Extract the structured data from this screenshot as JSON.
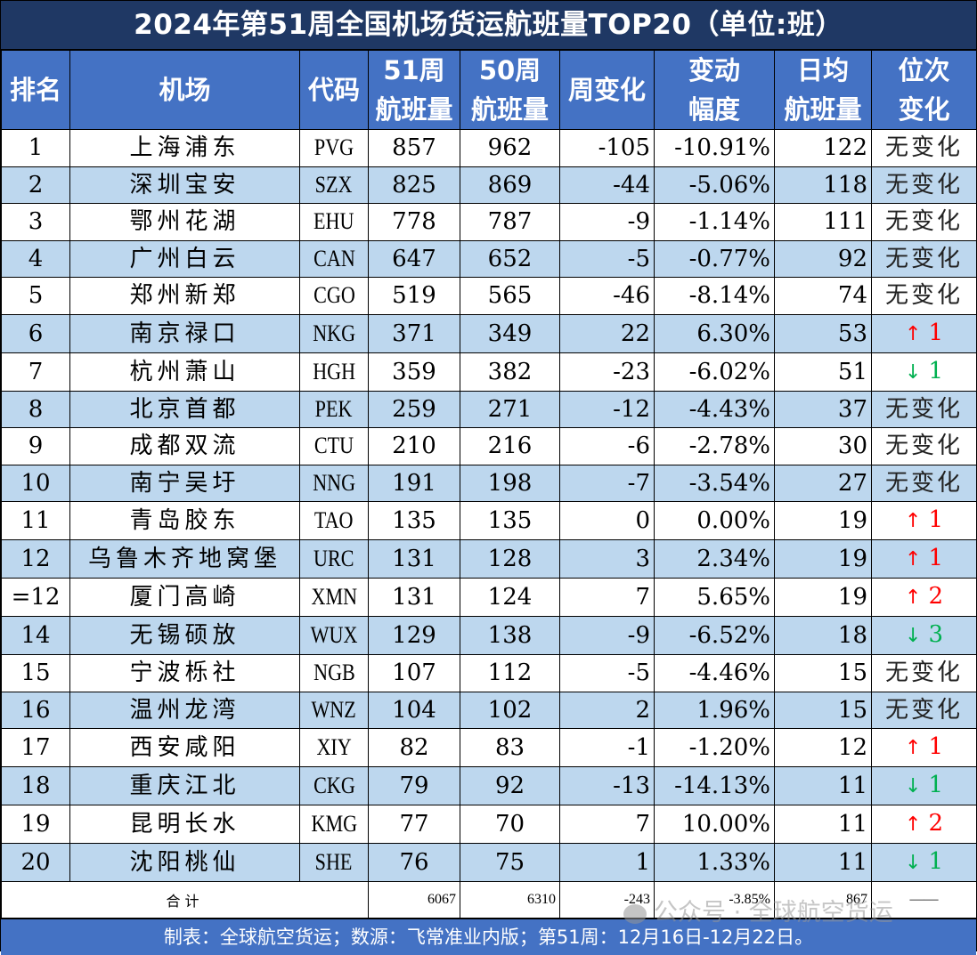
{
  "title": "2024年第51周全国机场货运航班量TOP20（单位:班）",
  "headers": {
    "rank": [
      "排名"
    ],
    "airport": [
      "机场"
    ],
    "code": [
      "代码"
    ],
    "w51": [
      "51周",
      "航班量"
    ],
    "w50": [
      "50周",
      "航班量"
    ],
    "wow": [
      "周变化"
    ],
    "pct": [
      "变动",
      "幅度"
    ],
    "daily": [
      "日均",
      "航班量"
    ],
    "pos": [
      "位次",
      "变化"
    ]
  },
  "rows": [
    {
      "rank": "1",
      "airport": "上海浦东",
      "code": "PVG",
      "w51": "857",
      "w50": "962",
      "wow": "-105",
      "pct": "-10.91%",
      "daily": "122",
      "pos": "无变化",
      "dir": "none"
    },
    {
      "rank": "2",
      "airport": "深圳宝安",
      "code": "SZX",
      "w51": "825",
      "w50": "869",
      "wow": "-44",
      "pct": "-5.06%",
      "daily": "118",
      "pos": "无变化",
      "dir": "none"
    },
    {
      "rank": "3",
      "airport": "鄂州花湖",
      "code": "EHU",
      "w51": "778",
      "w50": "787",
      "wow": "-9",
      "pct": "-1.14%",
      "daily": "111",
      "pos": "无变化",
      "dir": "none"
    },
    {
      "rank": "4",
      "airport": "广州白云",
      "code": "CAN",
      "w51": "647",
      "w50": "652",
      "wow": "-5",
      "pct": "-0.77%",
      "daily": "92",
      "pos": "无变化",
      "dir": "none"
    },
    {
      "rank": "5",
      "airport": "郑州新郑",
      "code": "CGO",
      "w51": "519",
      "w50": "565",
      "wow": "-46",
      "pct": "-8.14%",
      "daily": "74",
      "pos": "无变化",
      "dir": "none"
    },
    {
      "rank": "6",
      "airport": "南京禄口",
      "code": "NKG",
      "w51": "371",
      "w50": "349",
      "wow": "22",
      "pct": "6.30%",
      "daily": "53",
      "pos": "1",
      "dir": "up"
    },
    {
      "rank": "7",
      "airport": "杭州萧山",
      "code": "HGH",
      "w51": "359",
      "w50": "382",
      "wow": "-23",
      "pct": "-6.02%",
      "daily": "51",
      "pos": "1",
      "dir": "down"
    },
    {
      "rank": "8",
      "airport": "北京首都",
      "code": "PEK",
      "w51": "259",
      "w50": "271",
      "wow": "-12",
      "pct": "-4.43%",
      "daily": "37",
      "pos": "无变化",
      "dir": "none"
    },
    {
      "rank": "9",
      "airport": "成都双流",
      "code": "CTU",
      "w51": "210",
      "w50": "216",
      "wow": "-6",
      "pct": "-2.78%",
      "daily": "30",
      "pos": "无变化",
      "dir": "none"
    },
    {
      "rank": "10",
      "airport": "南宁吴圩",
      "code": "NNG",
      "w51": "191",
      "w50": "198",
      "wow": "-7",
      "pct": "-3.54%",
      "daily": "27",
      "pos": "无变化",
      "dir": "none"
    },
    {
      "rank": "11",
      "airport": "青岛胶东",
      "code": "TAO",
      "w51": "135",
      "w50": "135",
      "wow": "0",
      "pct": "0.00%",
      "daily": "19",
      "pos": "1",
      "dir": "up"
    },
    {
      "rank": "12",
      "airport": "乌鲁木齐地窝堡",
      "code": "URC",
      "w51": "131",
      "w50": "128",
      "wow": "3",
      "pct": "2.34%",
      "daily": "19",
      "pos": "1",
      "dir": "up"
    },
    {
      "rank": "=12",
      "airport": "厦门高崎",
      "code": "XMN",
      "w51": "131",
      "w50": "124",
      "wow": "7",
      "pct": "5.65%",
      "daily": "19",
      "pos": "2",
      "dir": "up"
    },
    {
      "rank": "14",
      "airport": "无锡硕放",
      "code": "WUX",
      "w51": "129",
      "w50": "138",
      "wow": "-9",
      "pct": "-6.52%",
      "daily": "18",
      "pos": "3",
      "dir": "down"
    },
    {
      "rank": "15",
      "airport": "宁波栎社",
      "code": "NGB",
      "w51": "107",
      "w50": "112",
      "wow": "-5",
      "pct": "-4.46%",
      "daily": "15",
      "pos": "无变化",
      "dir": "none"
    },
    {
      "rank": "16",
      "airport": "温州龙湾",
      "code": "WNZ",
      "w51": "104",
      "w50": "102",
      "wow": "2",
      "pct": "1.96%",
      "daily": "15",
      "pos": "无变化",
      "dir": "none"
    },
    {
      "rank": "17",
      "airport": "西安咸阳",
      "code": "XIY",
      "w51": "82",
      "w50": "83",
      "wow": "-1",
      "pct": "-1.20%",
      "daily": "12",
      "pos": "1",
      "dir": "up"
    },
    {
      "rank": "18",
      "airport": "重庆江北",
      "code": "CKG",
      "w51": "79",
      "w50": "92",
      "wow": "-13",
      "pct": "-14.13%",
      "daily": "11",
      "pos": "1",
      "dir": "down"
    },
    {
      "rank": "19",
      "airport": "昆明长水",
      "code": "KMG",
      "w51": "77",
      "w50": "70",
      "wow": "7",
      "pct": "10.00%",
      "daily": "11",
      "pos": "2",
      "dir": "up"
    },
    {
      "rank": "20",
      "airport": "沈阳桃仙",
      "code": "SHE",
      "w51": "76",
      "w50": "75",
      "wow": "1",
      "pct": "1.33%",
      "daily": "11",
      "pos": "1",
      "dir": "down"
    }
  ],
  "total": {
    "label": "合计",
    "w51": "6067",
    "w50": "6310",
    "wow": "-243",
    "pct": "-3.85%",
    "daily": "867",
    "pos": "——"
  },
  "footer": "制表：全球航空货运；数源：飞常准业内版；第51周：12月16日-12月22日。",
  "watermark": "公众号 · 全球航空货运",
  "arrows": {
    "up": "↑",
    "down": "↓"
  },
  "colors": {
    "title_bg": "#1f3864",
    "header_bg": "#4472c4",
    "alt_row_bg": "#bdd7ee",
    "up": "#ff0000",
    "down": "#00b050"
  },
  "chart_data": {
    "type": "table",
    "title": "2024年第51周全国机场货运航班量TOP20（单位:班）",
    "columns": [
      "排名",
      "机场",
      "代码",
      "51周航班量",
      "50周航班量",
      "周变化",
      "变动幅度",
      "日均航班量",
      "位次变化"
    ],
    "rows": [
      [
        "1",
        "上海浦东",
        "PVG",
        857,
        962,
        -105,
        "-10.91%",
        122,
        "无变化"
      ],
      [
        "2",
        "深圳宝安",
        "SZX",
        825,
        869,
        -44,
        "-5.06%",
        118,
        "无变化"
      ],
      [
        "3",
        "鄂州花湖",
        "EHU",
        778,
        787,
        -9,
        "-1.14%",
        111,
        "无变化"
      ],
      [
        "4",
        "广州白云",
        "CAN",
        647,
        652,
        -5,
        "-0.77%",
        92,
        "无变化"
      ],
      [
        "5",
        "郑州新郑",
        "CGO",
        519,
        565,
        -46,
        "-8.14%",
        74,
        "无变化"
      ],
      [
        "6",
        "南京禄口",
        "NKG",
        371,
        349,
        22,
        "6.30%",
        53,
        "↑1"
      ],
      [
        "7",
        "杭州萧山",
        "HGH",
        359,
        382,
        -23,
        "-6.02%",
        51,
        "↓1"
      ],
      [
        "8",
        "北京首都",
        "PEK",
        259,
        271,
        -12,
        "-4.43%",
        37,
        "无变化"
      ],
      [
        "9",
        "成都双流",
        "CTU",
        210,
        216,
        -6,
        "-2.78%",
        30,
        "无变化"
      ],
      [
        "10",
        "南宁吴圩",
        "NNG",
        191,
        198,
        -7,
        "-3.54%",
        27,
        "无变化"
      ],
      [
        "11",
        "青岛胶东",
        "TAO",
        135,
        135,
        0,
        "0.00%",
        19,
        "↑1"
      ],
      [
        "12",
        "乌鲁木齐地窝堡",
        "URC",
        131,
        128,
        3,
        "2.34%",
        19,
        "↑1"
      ],
      [
        "=12",
        "厦门高崎",
        "XMN",
        131,
        124,
        7,
        "5.65%",
        19,
        "↑2"
      ],
      [
        "14",
        "无锡硕放",
        "WUX",
        129,
        138,
        -9,
        "-6.52%",
        18,
        "↓3"
      ],
      [
        "15",
        "宁波栎社",
        "NGB",
        107,
        112,
        -5,
        "-4.46%",
        15,
        "无变化"
      ],
      [
        "16",
        "温州龙湾",
        "WNZ",
        104,
        102,
        2,
        "1.96%",
        15,
        "无变化"
      ],
      [
        "17",
        "西安咸阳",
        "XIY",
        82,
        83,
        -1,
        "-1.20%",
        12,
        "↑1"
      ],
      [
        "18",
        "重庆江北",
        "CKG",
        79,
        92,
        -13,
        "-14.13%",
        11,
        "↓1"
      ],
      [
        "19",
        "昆明长水",
        "KMG",
        77,
        70,
        7,
        "10.00%",
        11,
        "↑2"
      ],
      [
        "20",
        "沈阳桃仙",
        "SHE",
        76,
        75,
        1,
        "1.33%",
        11,
        "↓1"
      ]
    ],
    "total": [
      "合计",
      6067,
      6310,
      -243,
      "-3.85%",
      867,
      "——"
    ]
  }
}
